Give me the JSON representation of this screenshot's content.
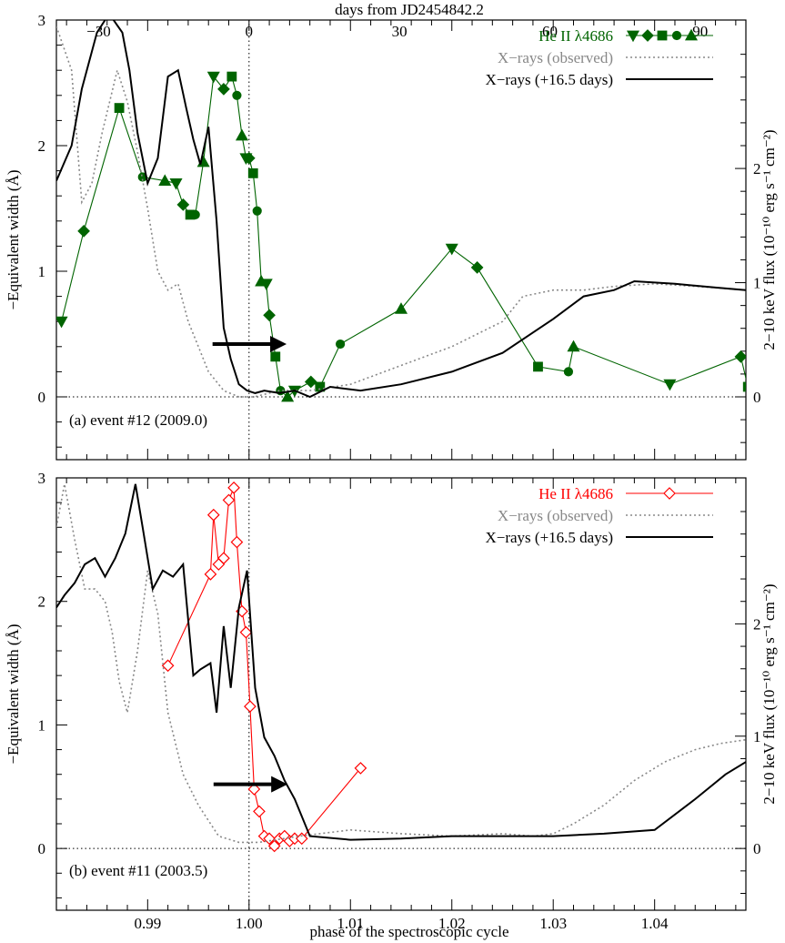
{
  "chart_data": {
    "type": "line",
    "shared_x": {
      "label": "phase of the spectroscopic cycle",
      "range": [
        0.981,
        1.049
      ],
      "ticks": [
        0.99,
        1.0,
        1.01,
        1.02,
        1.03,
        1.04
      ],
      "tick_labels": [
        "0.99",
        "1.00",
        "1.01",
        "1.02",
        "1.03",
        "1.04"
      ],
      "top_axis": {
        "label": "days from JD2454842.2",
        "ticks": [
          -30,
          0,
          30,
          60,
          90
        ],
        "tick_labels": [
          "−30",
          "0",
          "30",
          "60",
          "90"
        ]
      }
    },
    "panels": [
      {
        "panel_label": "(a) event #12 (2009.0)",
        "ylabel": "−Equivalent width (Å)",
        "ylim": [
          -0.5,
          3.0
        ],
        "yticks": [
          0,
          1,
          2,
          3
        ],
        "ytick_labels": [
          "0",
          "1",
          "2",
          "3"
        ],
        "y2label": "2−10 keV flux (10⁻¹⁰ erg s⁻¹ cm⁻²)",
        "y2ticks": [
          0,
          1,
          2
        ],
        "y2tick_labels": [
          "0",
          "1",
          "2"
        ],
        "y2lim": [
          -0.55,
          3.3
        ],
        "arrow": {
          "x_start": 0.9964,
          "x_end": 1.0037,
          "y": 0.42
        },
        "legend": [
          "He II λ4686",
          "X−rays (observed)",
          "X−rays (+16.5 days)"
        ],
        "series": [
          {
            "name": "He II λ4686",
            "color": "#006400",
            "style": "solid-markers",
            "x": [
              0.9815,
              0.9837,
              0.9872,
              0.9895,
              0.9917,
              0.9928,
              0.9935,
              0.9942,
              0.9947,
              0.9955,
              0.9965,
              0.9975,
              0.9983,
              0.9988,
              0.9993,
              0.9997,
              1.0,
              1.0004,
              1.0008,
              1.0012,
              1.0017,
              1.002,
              1.0026,
              1.0031,
              1.0038,
              1.0045,
              1.0061,
              1.007,
              1.009,
              1.015,
              1.02,
              1.0225,
              1.0285,
              1.0315,
              1.032,
              1.0415,
              1.0485,
              1.0492
            ],
            "y": [
              0.6,
              1.32,
              2.3,
              1.75,
              1.72,
              1.7,
              1.53,
              1.45,
              1.45,
              1.87,
              2.55,
              2.45,
              2.55,
              2.4,
              2.08,
              1.9,
              1.9,
              1.78,
              1.48,
              0.92,
              0.9,
              0.65,
              0.32,
              0.05,
              0.0,
              0.05,
              0.12,
              0.08,
              0.42,
              0.7,
              1.18,
              1.03,
              0.24,
              0.2,
              0.4,
              0.1,
              0.32,
              0.08
            ]
          },
          {
            "name": "X−rays (observed)",
            "color": "#888888",
            "style": "dotted",
            "x": [
              0.981,
              0.9825,
              0.9835,
              0.9845,
              0.9855,
              0.987,
              0.988,
              0.989,
              0.99,
              0.991,
              0.992,
              0.993,
              0.994,
              0.995,
              0.996,
              0.9975,
              0.999,
              1.0005,
              1.003,
              1.006,
              1.01,
              1.015,
              1.02,
              1.025,
              1.027,
              1.03,
              1.033,
              1.036,
              1.04,
              1.044,
              1.049
            ],
            "y": [
              2.95,
              2.6,
              1.55,
              1.7,
              2.1,
              2.6,
              2.35,
              1.95,
              1.5,
              1.0,
              0.85,
              0.9,
              0.6,
              0.4,
              0.2,
              0.05,
              0.0,
              0.0,
              0.05,
              0.05,
              0.1,
              0.25,
              0.4,
              0.6,
              0.8,
              0.85,
              0.85,
              0.88,
              0.9,
              0.88,
              0.85
            ]
          },
          {
            "name": "X−rays (+16.5 days)",
            "color": "#000000",
            "style": "solid",
            "x": [
              0.981,
              0.9825,
              0.9835,
              0.985,
              0.9862,
              0.9875,
              0.9882,
              0.989,
              0.99,
              0.991,
              0.992,
              0.993,
              0.9938,
              0.9945,
              0.9952,
              0.996,
              0.9968,
              0.9975,
              0.9982,
              0.999,
              0.9998,
              1.0006,
              1.0015,
              1.003,
              1.0045,
              1.006,
              1.008,
              1.011,
              1.015,
              1.02,
              1.025,
              1.03,
              1.033,
              1.036,
              1.038,
              1.042,
              1.046,
              1.049
            ],
            "y": [
              1.72,
              2.0,
              2.45,
              2.9,
              3.05,
              2.9,
              2.6,
              2.1,
              1.7,
              1.9,
              2.55,
              2.6,
              2.3,
              2.05,
              1.85,
              2.15,
              1.4,
              0.55,
              0.3,
              0.1,
              0.05,
              0.03,
              0.05,
              0.03,
              0.05,
              0.0,
              0.08,
              0.05,
              0.1,
              0.2,
              0.35,
              0.62,
              0.8,
              0.85,
              0.92,
              0.9,
              0.87,
              0.85
            ]
          }
        ]
      },
      {
        "panel_label": "(b) event #11 (2003.5)",
        "ylabel": "−Equivalent width (Å)",
        "ylim": [
          -0.5,
          3.0
        ],
        "yticks": [
          0,
          1,
          2,
          3
        ],
        "ytick_labels": [
          "0",
          "1",
          "2",
          "3"
        ],
        "y2label": "2−10 keV flux (10⁻¹⁰ erg s⁻¹ cm⁻²)",
        "y2ticks": [
          0,
          1,
          2
        ],
        "y2tick_labels": [
          "0",
          "1",
          "2"
        ],
        "y2lim": [
          -0.55,
          3.3
        ],
        "arrow": {
          "x_start": 0.9965,
          "x_end": 1.0038,
          "y": 0.52
        },
        "legend": [
          "He II λ4686",
          "X−rays (observed)",
          "X−rays (+16.5 days)"
        ],
        "series": [
          {
            "name": "He II λ4686",
            "color": "#ff0000",
            "style": "open-diamonds",
            "x": [
              0.992,
              0.9962,
              0.9965,
              0.997,
              0.9975,
              0.998,
              0.9985,
              0.9988,
              0.9993,
              0.9997,
              1.0001,
              1.0005,
              1.001,
              1.0015,
              1.002,
              1.0025,
              1.003,
              1.0035,
              1.004,
              1.0045,
              1.0052,
              1.011
            ],
            "y": [
              1.48,
              2.22,
              2.7,
              2.3,
              2.35,
              2.82,
              2.92,
              2.48,
              1.92,
              1.75,
              1.15,
              0.48,
              0.3,
              0.1,
              0.08,
              0.02,
              0.08,
              0.1,
              0.06,
              0.08,
              0.08,
              0.65
            ]
          },
          {
            "name": "X−rays (observed)",
            "color": "#888888",
            "style": "dotted",
            "x": [
              0.981,
              0.9818,
              0.9828,
              0.9838,
              0.9848,
              0.9858,
              0.9865,
              0.9872,
              0.988,
              0.989,
              0.99,
              0.991,
              0.992,
              0.9935,
              0.995,
              0.997,
              0.999,
              1.001,
              1.005,
              1.01,
              1.015,
              1.02,
              1.025,
              1.028,
              1.03,
              1.032,
              1.035,
              1.038,
              1.041,
              1.044,
              1.0465,
              1.049
            ],
            "y": [
              2.6,
              2.95,
              2.5,
              2.1,
              2.1,
              2.0,
              1.75,
              1.35,
              1.1,
              1.6,
              2.25,
              1.9,
              1.1,
              0.6,
              0.35,
              0.1,
              0.05,
              0.05,
              0.1,
              0.15,
              0.12,
              0.1,
              0.12,
              0.1,
              0.12,
              0.2,
              0.35,
              0.55,
              0.7,
              0.8,
              0.85,
              0.88
            ]
          },
          {
            "name": "X−rays (+16.5 days)",
            "color": "#000000",
            "style": "solid",
            "x": [
              0.981,
              0.9818,
              0.9828,
              0.9838,
              0.9848,
              0.9858,
              0.9868,
              0.9878,
              0.9888,
              0.9895,
              0.9905,
              0.9915,
              0.9925,
              0.9935,
              0.9945,
              0.9952,
              0.9962,
              0.9968,
              0.9975,
              0.9982,
              0.999,
              0.9998,
              1.0006,
              1.0015,
              1.0025,
              1.0035,
              1.0045,
              1.006,
              1.01,
              1.015,
              1.02,
              1.025,
              1.03,
              1.035,
              1.04,
              1.044,
              1.047,
              1.049
            ],
            "y": [
              1.95,
              2.05,
              2.15,
              2.3,
              2.35,
              2.2,
              2.35,
              2.55,
              2.95,
              2.6,
              2.1,
              2.25,
              2.2,
              2.3,
              1.4,
              1.45,
              1.5,
              1.1,
              1.8,
              1.3,
              1.95,
              2.25,
              1.3,
              0.9,
              0.75,
              0.55,
              0.4,
              0.1,
              0.07,
              0.08,
              0.1,
              0.1,
              0.1,
              0.12,
              0.15,
              0.4,
              0.6,
              0.7
            ]
          }
        ]
      }
    ]
  }
}
